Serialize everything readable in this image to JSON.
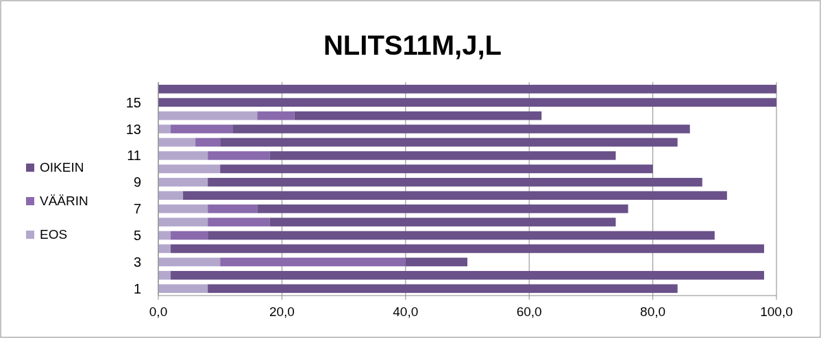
{
  "chart_data": {
    "type": "bar",
    "title": "NLITS11M,J,L",
    "orientation": "horizontal",
    "stacked": true,
    "categories": [
      null,
      "15",
      null,
      "13",
      null,
      "11",
      null,
      "9",
      null,
      "7",
      null,
      "5",
      null,
      "3",
      null,
      "1"
    ],
    "series": [
      {
        "name": "EOS",
        "color": "#b3a8cc",
        "values": [
          0,
          0,
          16,
          2,
          6,
          8,
          10,
          8,
          4,
          8,
          8,
          2,
          2,
          10,
          2,
          8
        ]
      },
      {
        "name": "VÄÄRIN",
        "color": "#8a6aad",
        "values": [
          0,
          0,
          6,
          10,
          4,
          10,
          0,
          0,
          0,
          8,
          10,
          6,
          0,
          30,
          0,
          0
        ]
      },
      {
        "name": "OIKEIN",
        "color": "#6a5189",
        "values": [
          100,
          100,
          40,
          74,
          74,
          56,
          70,
          80,
          88,
          60,
          56,
          82,
          96,
          10,
          96,
          76
        ]
      }
    ],
    "xlim": [
      0,
      100
    ],
    "xticks": [
      {
        "value": 0,
        "label": "0,0"
      },
      {
        "value": 20,
        "label": "20,0"
      },
      {
        "value": 40,
        "label": "40,0"
      },
      {
        "value": 60,
        "label": "60,0"
      },
      {
        "value": 80,
        "label": "80,0"
      },
      {
        "value": 100,
        "label": "100,0"
      }
    ],
    "grid": "x",
    "legend": "left"
  }
}
